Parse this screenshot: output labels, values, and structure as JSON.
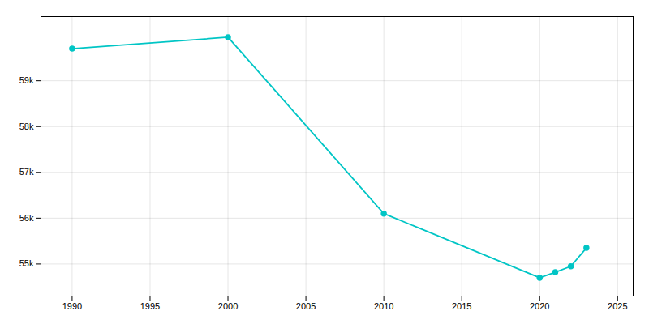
{
  "chart_data": {
    "type": "line",
    "x": [
      1990,
      2000,
      2010,
      2020,
      2021,
      2022,
      2023
    ],
    "values": [
      59700,
      59950,
      56100,
      54700,
      54820,
      54950,
      55350
    ],
    "color": "#00C5C5",
    "marker": "circle",
    "xlim": [
      1988,
      2026
    ],
    "ylim": [
      54300,
      60400
    ],
    "xticks": [
      1990,
      1995,
      2000,
      2005,
      2010,
      2015,
      2020,
      2025
    ],
    "yticks": [
      {
        "value": 55000,
        "label": "55k"
      },
      {
        "value": 56000,
        "label": "56k"
      },
      {
        "value": 57000,
        "label": "57k"
      },
      {
        "value": 58000,
        "label": "58k"
      },
      {
        "value": 59000,
        "label": "59k"
      }
    ],
    "grid": true
  }
}
